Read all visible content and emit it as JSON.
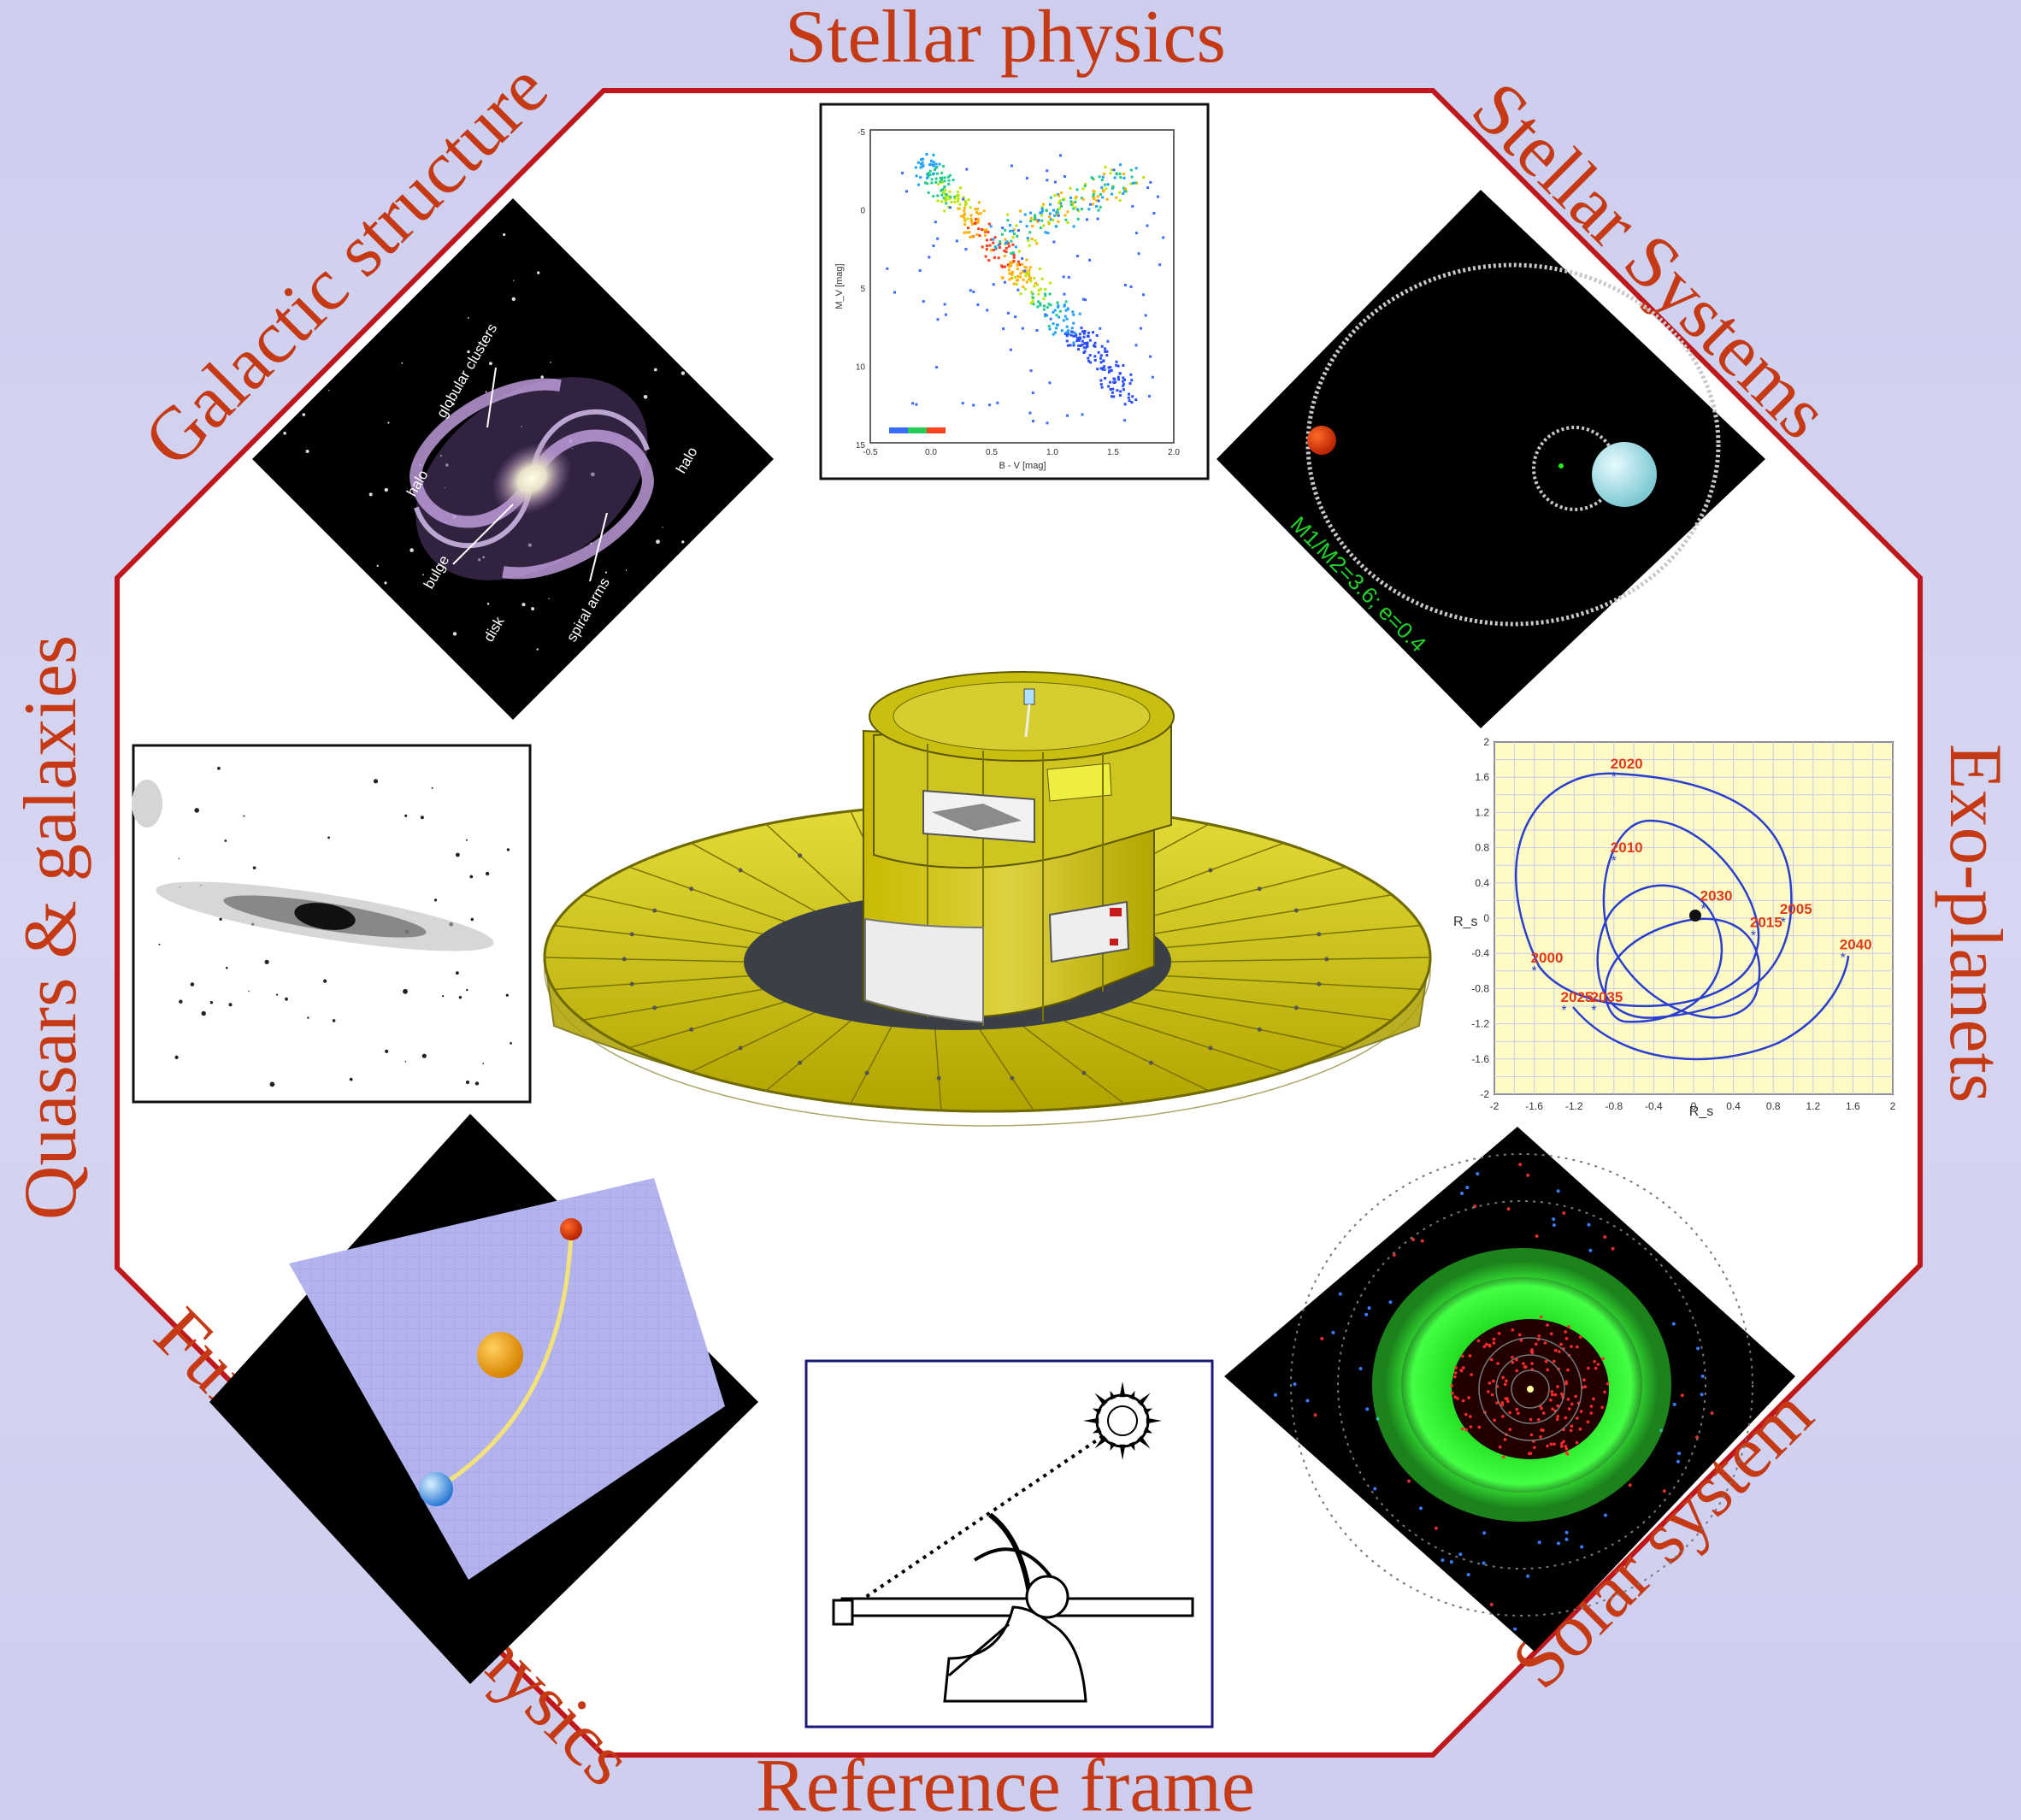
{
  "themes": {
    "stellar_physics": "Stellar physics",
    "stellar_systems": "Stellar Systems",
    "exo_planets": "Exo-planets",
    "solar_system": "Solar system",
    "reference_frame": "Reference frame",
    "fundamental_physics": "Fundamental physics",
    "quasars_galaxies": "Quasars & galaxies",
    "galactic_structure": "Galactic structure"
  },
  "galaxy_labels": {
    "globular_clusters": "globular clusters",
    "halo_left": "halo",
    "halo_right": "halo",
    "bulge": "bulge",
    "disk": "disk",
    "spiral_arms": "spiral arms"
  },
  "hr_diagram": {
    "xlabel": "B - V [mag]",
    "ylabel": "M_V [mag]",
    "xticks": [
      "-0.5",
      "0.0",
      "0.5",
      "1.0",
      "1.5",
      "2.0"
    ],
    "yticks": [
      "-5",
      "0",
      "5",
      "10",
      "15"
    ]
  },
  "binary": {
    "label": "M1/M2=3.6; e=0.4"
  },
  "exoplanet_chart": {
    "xlabel": "R_s",
    "ylabel": "R_s",
    "ticks": [
      "-2",
      "-1.6",
      "-1.2",
      "-0.8",
      "-0.4",
      "0",
      "0.4",
      "0.8",
      "1.2",
      "1.6",
      "2"
    ],
    "years": [
      "2020",
      "2010",
      "2030",
      "2005",
      "2015",
      "2000",
      "2035",
      "2025",
      "2040"
    ]
  },
  "colors": {
    "octagon": "#c0171d",
    "theme_text": "#c53a14",
    "spacecraft": "#c2b400",
    "orbit_path": "#2a3ed0"
  }
}
